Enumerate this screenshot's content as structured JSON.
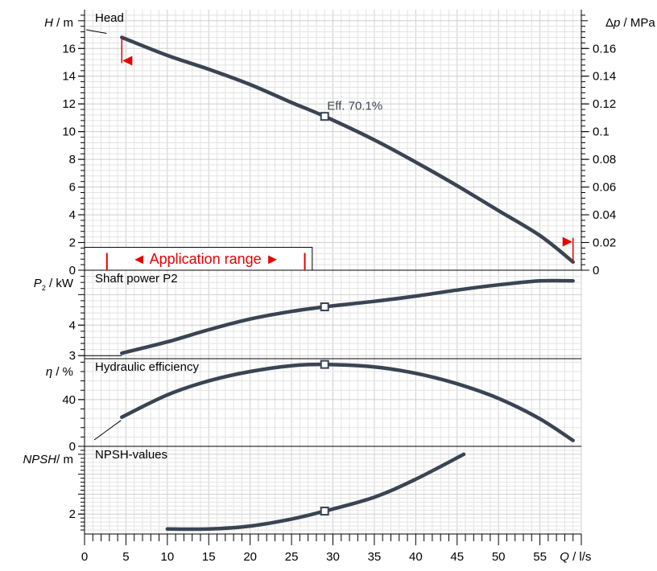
{
  "chart_data": {
    "type": "line",
    "x_axis": {
      "label_var": "Q",
      "label_unit": " / l/s",
      "range": [
        0,
        60
      ],
      "ticks": [
        0,
        5,
        10,
        15,
        20,
        25,
        30,
        35,
        40,
        45,
        50,
        55
      ],
      "tick_labels": [
        "0",
        "5",
        "10",
        "15",
        "20",
        "25",
        "30",
        "35",
        "40",
        "45",
        "50",
        "55"
      ]
    },
    "duty_point_q": 29,
    "grid": true,
    "panels": [
      {
        "id": "head",
        "title": "Head",
        "y_label_var": "H",
        "y_label_unit": " / m",
        "y_range": [
          0,
          18.8
        ],
        "y_ticks": [
          0,
          2,
          4,
          6,
          8,
          10,
          12,
          14,
          16
        ],
        "y_tick_labels": [
          "0",
          "2",
          "4",
          "6",
          "8",
          "10",
          "12",
          "14",
          "16"
        ],
        "secondary_axis": {
          "label_prefix": "Δ",
          "label_var": "p",
          "label_unit": " / MPa",
          "ticks": [
            0,
            0.02,
            0.04,
            0.06,
            0.08,
            0.1,
            0.12,
            0.14,
            0.16
          ],
          "tick_labels": [
            "0",
            "0.02",
            "0.04",
            "0.06",
            "0.08",
            "0.1",
            "0.12",
            "0.14",
            "0.16"
          ]
        },
        "series": [
          {
            "x": [
              4.5,
              10,
              15,
              20,
              25,
              29,
              35,
              40,
              45,
              50,
              55,
              59
            ],
            "y": [
              16.8,
              15.5,
              14.5,
              13.4,
              12.1,
              11.1,
              9.4,
              7.8,
              6.1,
              4.3,
              2.5,
              0.6
            ]
          }
        ],
        "duty_value": 11.1,
        "annotation": "Eff.  70.1%",
        "application_range": {
          "label": "◄ Application range ►",
          "q_min": 4.5,
          "q_max": 59
        }
      },
      {
        "id": "power",
        "title": "Shaft power P2",
        "y_label_var": "P",
        "y_label_sub": "2",
        "y_label_unit": " / kW",
        "y_range": [
          2.9,
          5.8
        ],
        "y_ticks": [
          3,
          4
        ],
        "y_tick_labels": [
          "3",
          "4"
        ],
        "series": [
          {
            "x": [
              4.5,
              10,
              15,
              20,
              25,
              29,
              35,
              40,
              45,
              50,
              55,
              59
            ],
            "y": [
              3.08,
              3.45,
              3.85,
              4.2,
              4.45,
              4.6,
              4.78,
              4.95,
              5.15,
              5.32,
              5.45,
              5.45
            ]
          }
        ],
        "duty_value": 4.6
      },
      {
        "id": "efficiency",
        "title": "Hydraulic efficiency",
        "y_label_var": "η",
        "y_label_unit": " / %",
        "y_range": [
          0,
          75
        ],
        "y_ticks": [
          0,
          40
        ],
        "y_tick_labels": [
          "0",
          "40"
        ],
        "series": [
          {
            "x": [
              4.5,
              10,
              15,
              20,
              25,
              29,
              35,
              40,
              45,
              50,
              55,
              59
            ],
            "y": [
              25,
              44,
              56,
              64,
              69,
              70.1,
              68,
              62.5,
              53.5,
              41,
              23.5,
              5
            ]
          }
        ],
        "duty_value": 70.1
      },
      {
        "id": "npsh",
        "title": "NPSH-values",
        "y_label_var": "NPSH",
        "y_label_unit": "/ m",
        "y_range": [
          1.0,
          5.4
        ],
        "y_ticks": [
          2
        ],
        "y_tick_labels": [
          "2"
        ],
        "series": [
          {
            "x": [
              10,
              15,
              20,
              25,
              29,
              35,
              40,
              45.8
            ],
            "y": [
              1.25,
              1.25,
              1.4,
              1.75,
              2.15,
              2.85,
              3.75,
              5.0
            ]
          }
        ],
        "duty_value": 2.15
      }
    ]
  }
}
